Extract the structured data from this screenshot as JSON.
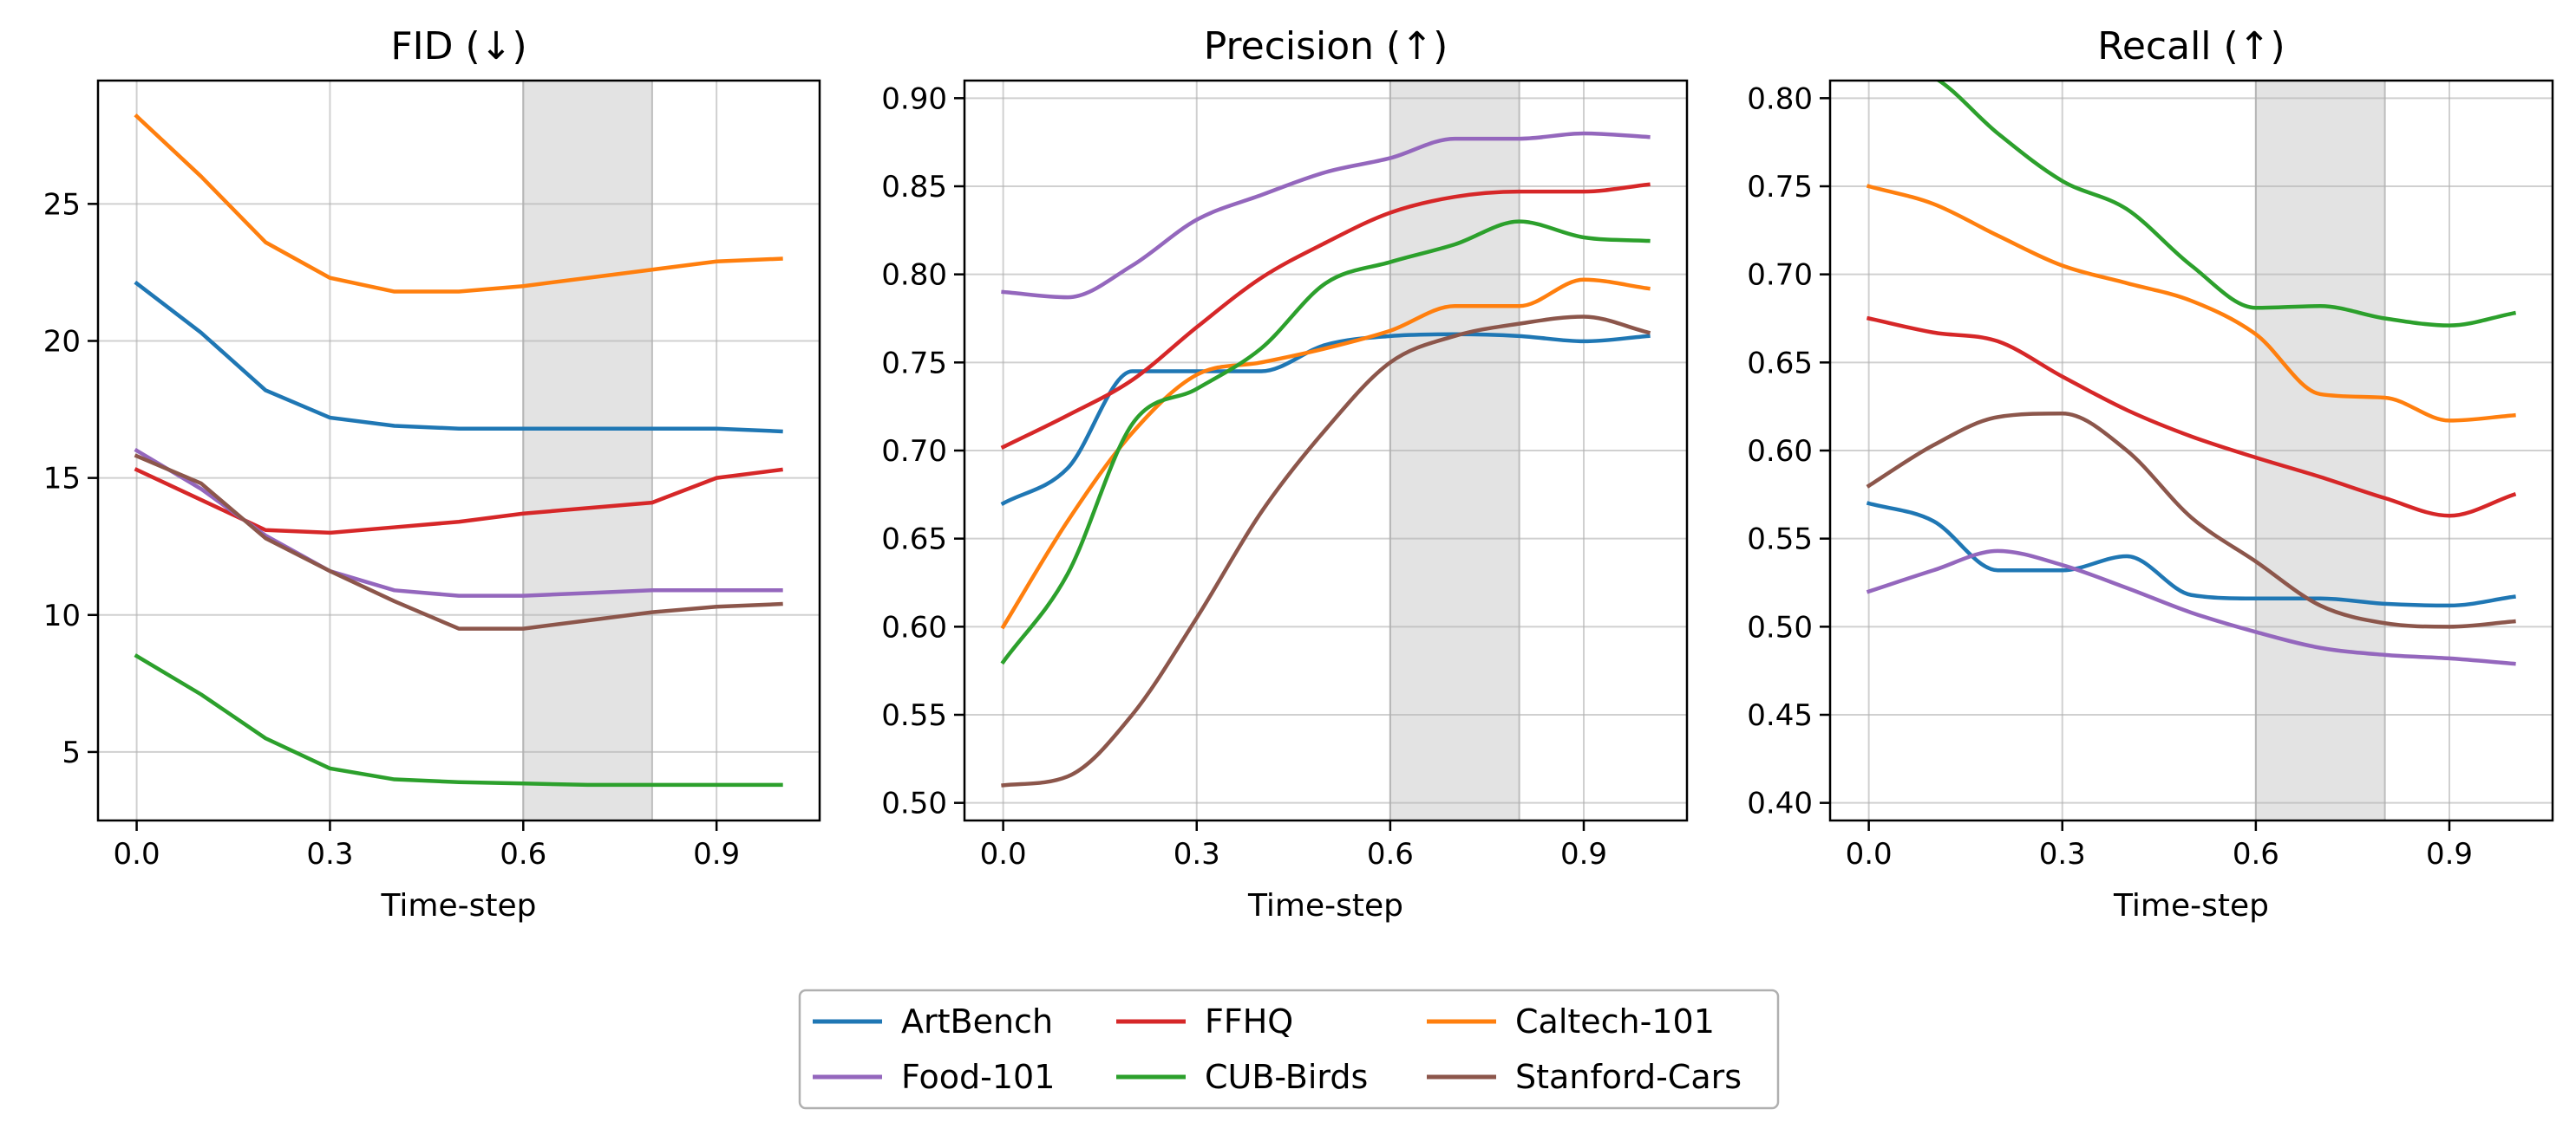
{
  "chart_data": [
    {
      "type": "line",
      "title": "FID (↓)",
      "xlabel": "Time-step",
      "ylabel": "",
      "xlim": [
        -0.06,
        1.06
      ],
      "ylim": [
        2.5,
        29.5
      ],
      "xticks": [
        0.0,
        0.3,
        0.6,
        0.9
      ],
      "xtick_labels": [
        "0.0",
        "0.3",
        "0.6",
        "0.9"
      ],
      "yticks": [
        5,
        10,
        15,
        20,
        25
      ],
      "ytick_labels": [
        "5",
        "10",
        "15",
        "20",
        "25"
      ],
      "grid": true,
      "shaded_region": [
        0.6,
        0.8
      ],
      "smooth": false,
      "x": [
        0.0,
        0.1,
        0.2,
        0.3,
        0.4,
        0.5,
        0.6,
        0.7,
        0.8,
        0.9,
        1.0
      ],
      "series": [
        {
          "name": "ArtBench",
          "color": "#1f77b4",
          "values": [
            22.1,
            20.3,
            18.2,
            17.2,
            16.9,
            16.8,
            16.8,
            16.8,
            16.8,
            16.8,
            16.7
          ]
        },
        {
          "name": "FFHQ",
          "color": "#d62728",
          "values": [
            15.3,
            14.2,
            13.1,
            13.0,
            13.2,
            13.4,
            13.7,
            13.9,
            14.1,
            15.0,
            15.3
          ]
        },
        {
          "name": "Caltech-101",
          "color": "#ff7f0e",
          "values": [
            28.2,
            26.0,
            23.6,
            22.3,
            21.8,
            21.8,
            22.0,
            22.3,
            22.6,
            22.9,
            23.0
          ]
        },
        {
          "name": "Food-101",
          "color": "#9467bd",
          "values": [
            16.0,
            14.6,
            12.9,
            11.6,
            10.9,
            10.7,
            10.7,
            10.8,
            10.9,
            10.9,
            10.9
          ]
        },
        {
          "name": "CUB-Birds",
          "color": "#2ca02c",
          "values": [
            8.5,
            7.1,
            5.5,
            4.4,
            4.0,
            3.9,
            3.85,
            3.8,
            3.8,
            3.8,
            3.8
          ]
        },
        {
          "name": "Stanford-Cars",
          "color": "#8c564b",
          "values": [
            15.8,
            14.8,
            12.8,
            11.6,
            10.5,
            9.5,
            9.5,
            9.8,
            10.1,
            10.3,
            10.4
          ]
        }
      ]
    },
    {
      "type": "line",
      "title": "Precision (↑)",
      "xlabel": "Time-step",
      "ylabel": "",
      "xlim": [
        -0.06,
        1.06
      ],
      "ylim": [
        0.49,
        0.91
      ],
      "xticks": [
        0.0,
        0.3,
        0.6,
        0.9
      ],
      "xtick_labels": [
        "0.0",
        "0.3",
        "0.6",
        "0.9"
      ],
      "yticks": [
        0.5,
        0.55,
        0.6,
        0.65,
        0.7,
        0.75,
        0.8,
        0.85,
        0.9
      ],
      "ytick_labels": [
        "0.50",
        "0.55",
        "0.60",
        "0.65",
        "0.70",
        "0.75",
        "0.80",
        "0.85",
        "0.90"
      ],
      "grid": true,
      "shaded_region": [
        0.6,
        0.8
      ],
      "smooth": true,
      "x": [
        0.0,
        0.1,
        0.2,
        0.3,
        0.4,
        0.5,
        0.6,
        0.7,
        0.8,
        0.9,
        1.0
      ],
      "series": [
        {
          "name": "ArtBench",
          "color": "#1f77b4",
          "values": [
            0.67,
            0.69,
            0.745,
            0.745,
            0.745,
            0.76,
            0.765,
            0.766,
            0.765,
            0.762,
            0.765
          ]
        },
        {
          "name": "FFHQ",
          "color": "#d62728",
          "values": [
            0.702,
            0.72,
            0.74,
            0.77,
            0.798,
            0.818,
            0.835,
            0.844,
            0.847,
            0.847,
            0.851
          ]
        },
        {
          "name": "Caltech-101",
          "color": "#ff7f0e",
          "values": [
            0.6,
            0.66,
            0.71,
            0.743,
            0.75,
            0.758,
            0.768,
            0.782,
            0.782,
            0.797,
            0.792
          ]
        },
        {
          "name": "Food-101",
          "color": "#9467bd",
          "values": [
            0.79,
            0.787,
            0.805,
            0.831,
            0.845,
            0.858,
            0.866,
            0.877,
            0.877,
            0.88,
            0.878
          ]
        },
        {
          "name": "CUB-Birds",
          "color": "#2ca02c",
          "values": [
            0.58,
            0.63,
            0.715,
            0.735,
            0.758,
            0.795,
            0.807,
            0.817,
            0.83,
            0.821,
            0.819
          ]
        },
        {
          "name": "Stanford-Cars",
          "color": "#8c564b",
          "values": [
            0.51,
            0.515,
            0.55,
            0.605,
            0.665,
            0.712,
            0.75,
            0.765,
            0.772,
            0.776,
            0.767
          ]
        }
      ]
    },
    {
      "type": "line",
      "title": "Recall (↑)",
      "xlabel": "Time-step",
      "ylabel": "",
      "xlim": [
        -0.06,
        1.06
      ],
      "ylim": [
        0.39,
        0.81
      ],
      "xticks": [
        0.0,
        0.3,
        0.6,
        0.9
      ],
      "xtick_labels": [
        "0.0",
        "0.3",
        "0.6",
        "0.9"
      ],
      "yticks": [
        0.4,
        0.45,
        0.5,
        0.55,
        0.6,
        0.65,
        0.7,
        0.75,
        0.8
      ],
      "ytick_labels": [
        "0.40",
        "0.45",
        "0.50",
        "0.55",
        "0.60",
        "0.65",
        "0.70",
        "0.75",
        "0.80"
      ],
      "grid": true,
      "shaded_region": [
        0.6,
        0.8
      ],
      "smooth": true,
      "x": [
        0.0,
        0.1,
        0.2,
        0.3,
        0.4,
        0.5,
        0.6,
        0.7,
        0.8,
        0.9,
        1.0
      ],
      "series": [
        {
          "name": "ArtBench",
          "color": "#1f77b4",
          "values": [
            0.57,
            0.56,
            0.532,
            0.532,
            0.54,
            0.518,
            0.516,
            0.516,
            0.513,
            0.512,
            0.517
          ]
        },
        {
          "name": "FFHQ",
          "color": "#d62728",
          "values": [
            0.675,
            0.667,
            0.662,
            0.642,
            0.623,
            0.608,
            0.596,
            0.585,
            0.573,
            0.563,
            0.575
          ]
        },
        {
          "name": "Caltech-101",
          "color": "#ff7f0e",
          "values": [
            0.75,
            0.74,
            0.722,
            0.705,
            0.695,
            0.685,
            0.666,
            0.632,
            0.63,
            0.617,
            0.62
          ]
        },
        {
          "name": "Food-101",
          "color": "#9467bd",
          "values": [
            0.52,
            0.532,
            0.543,
            0.535,
            0.522,
            0.508,
            0.497,
            0.488,
            0.484,
            0.482,
            0.479
          ]
        },
        {
          "name": "CUB-Birds",
          "color": "#2ca02c",
          "values": [
            0.82,
            0.812,
            0.78,
            0.753,
            0.737,
            0.705,
            0.681,
            0.682,
            0.675,
            0.671,
            0.678
          ]
        },
        {
          "name": "Stanford-Cars",
          "color": "#8c564b",
          "values": [
            0.58,
            0.603,
            0.619,
            0.621,
            0.6,
            0.562,
            0.537,
            0.512,
            0.502,
            0.5,
            0.503
          ]
        }
      ]
    }
  ],
  "legend": {
    "placement": "bottom-center",
    "columns": 3,
    "entries": [
      {
        "label": "ArtBench",
        "color": "#1f77b4"
      },
      {
        "label": "FFHQ",
        "color": "#d62728"
      },
      {
        "label": "Caltech-101",
        "color": "#ff7f0e"
      },
      {
        "label": "Food-101",
        "color": "#9467bd"
      },
      {
        "label": "CUB-Birds",
        "color": "#2ca02c"
      },
      {
        "label": "Stanford-Cars",
        "color": "#8c564b"
      }
    ]
  }
}
